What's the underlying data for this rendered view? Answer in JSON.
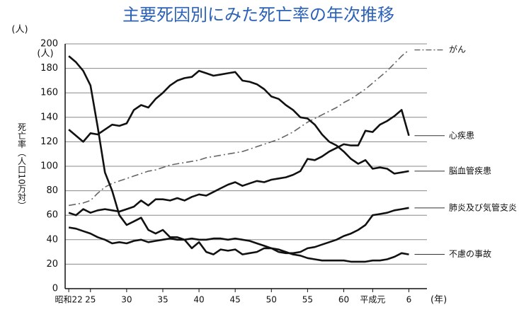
{
  "chart_data": {
    "type": "line",
    "title": "主要死因別にみた死亡率の年次推移",
    "y_unit": "(人)",
    "y_label": "死亡率（人口10万対）",
    "x_unit": "(年)",
    "x": [
      22,
      23,
      24,
      25,
      26,
      27,
      28,
      29,
      30,
      31,
      32,
      33,
      34,
      35,
      36,
      37,
      38,
      39,
      40,
      41,
      42,
      43,
      44,
      45,
      46,
      47,
      48,
      49,
      50,
      51,
      52,
      53,
      54,
      55,
      56,
      57,
      58,
      59,
      60,
      61,
      62,
      63,
      64,
      65,
      66,
      67,
      68,
      69
    ],
    "xlim": [
      21.5,
      71.5
    ],
    "xticks": [
      {
        "value": 22,
        "label": "昭和22"
      },
      25,
      30,
      35,
      40,
      45,
      50,
      55,
      60,
      {
        "value": 64,
        "label": "平成元"
      },
      {
        "value": 69,
        "label": "6"
      }
    ],
    "ylim": [
      0,
      200
    ],
    "yticks": [
      0,
      20,
      40,
      60,
      80,
      100,
      120,
      140,
      160,
      180,
      200
    ],
    "grid": true,
    "series": [
      {
        "name": "がん",
        "color": "#666666",
        "dash": "10 4 2 4",
        "values": [
          68,
          69,
          70,
          72,
          78,
          83,
          86,
          88,
          90,
          92,
          94,
          96,
          97,
          99,
          101,
          102,
          103,
          104,
          105,
          107,
          108,
          109,
          110,
          111,
          112,
          114,
          116,
          118,
          120,
          122,
          125,
          128,
          132,
          136,
          139,
          142,
          145,
          148,
          152,
          155,
          159,
          163,
          168,
          173,
          178,
          184,
          190,
          195
        ]
      },
      {
        "name": "心疾患",
        "color": "#111111",
        "dash": "",
        "values": [
          62,
          60,
          65,
          62,
          64,
          65,
          64,
          63,
          65,
          67,
          72,
          68,
          73,
          73,
          72,
          74,
          72,
          75,
          77,
          76,
          79,
          82,
          85,
          87,
          84,
          86,
          88,
          87,
          89,
          90,
          91,
          93,
          96,
          106,
          105,
          108,
          112,
          115,
          118,
          117,
          117,
          129,
          128,
          134,
          137,
          141,
          146,
          125
        ]
      },
      {
        "name": "脳血管疾患",
        "color": "#111111",
        "dash": "",
        "values": [
          130,
          125,
          120,
          127,
          126,
          130,
          134,
          133,
          135,
          146,
          150,
          148,
          155,
          160,
          166,
          170,
          172,
          173,
          178,
          176,
          174,
          175,
          176,
          177,
          170,
          169,
          167,
          163,
          157,
          155,
          150,
          146,
          140,
          139,
          134,
          126,
          120,
          117,
          112,
          106,
          102,
          105,
          98,
          99,
          98,
          94,
          95,
          96
        ]
      },
      {
        "name": "肺炎及び気管支炎",
        "color": "#111111",
        "dash": "",
        "values": [
          190,
          185,
          178,
          166,
          132,
          95,
          80,
          60,
          52,
          55,
          58,
          48,
          45,
          48,
          42,
          42,
          40,
          33,
          38,
          30,
          28,
          32,
          31,
          32,
          28,
          29,
          30,
          33,
          33,
          30,
          29,
          29,
          30,
          33,
          34,
          36,
          38,
          40,
          43,
          45,
          48,
          52,
          60,
          61,
          62,
          64,
          65,
          66
        ]
      },
      {
        "name": "不慮の事故",
        "color": "#111111",
        "dash": "",
        "values": [
          50,
          49,
          47,
          45,
          42,
          40,
          37,
          38,
          37,
          39,
          40,
          38,
          39,
          40,
          41,
          40,
          40,
          41,
          40,
          40,
          41,
          41,
          40,
          41,
          40,
          39,
          37,
          35,
          33,
          32,
          30,
          28,
          27,
          25,
          24,
          23,
          23,
          23,
          23,
          22,
          22,
          22,
          23,
          23,
          24,
          26,
          29,
          28
        ]
      }
    ]
  }
}
